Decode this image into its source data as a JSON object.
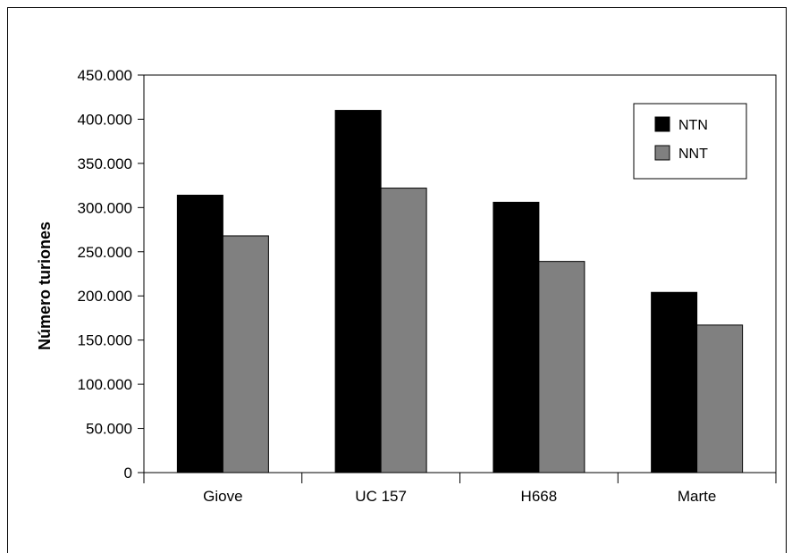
{
  "chart_data": {
    "type": "bar",
    "title": "",
    "xlabel": "",
    "ylabel": "Número turiones",
    "categories": [
      "Giove",
      "UC 157",
      "H668",
      "Marte"
    ],
    "series": [
      {
        "name": "NTN",
        "values": [
          314000,
          410000,
          306000,
          204000
        ],
        "color": "#000000"
      },
      {
        "name": "NNT",
        "values": [
          268000,
          322000,
          239000,
          167000
        ],
        "color": "#808080"
      }
    ],
    "ylim": [
      0,
      450000
    ],
    "yticks": [
      0,
      50000,
      100000,
      150000,
      200000,
      250000,
      300000,
      350000,
      400000,
      450000
    ],
    "ytick_labels": [
      "0",
      "50.000",
      "100.000",
      "150.000",
      "200.000",
      "250.000",
      "300.000",
      "350.000",
      "400.000",
      "450.000"
    ],
    "grid": false,
    "legend_position": "top-right"
  }
}
